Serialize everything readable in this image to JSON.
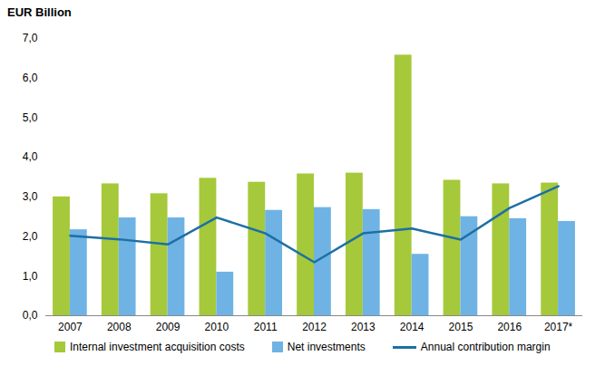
{
  "chart_data": {
    "type": "bar",
    "title": "EUR Billion",
    "categories": [
      "2007",
      "2008",
      "2009",
      "2010",
      "2011",
      "2012",
      "2013",
      "2014",
      "2015",
      "2016",
      "2017*"
    ],
    "series": [
      {
        "name": "Internal investment acquisition costs",
        "type": "bar",
        "color": "#a5c93a",
        "values": [
          3.0,
          3.33,
          3.08,
          3.47,
          3.37,
          3.58,
          3.6,
          6.58,
          3.42,
          3.33,
          3.35
        ]
      },
      {
        "name": "Net investments",
        "type": "bar",
        "color": "#6fb3e4",
        "values": [
          2.17,
          2.47,
          2.47,
          1.1,
          2.66,
          2.73,
          2.68,
          1.55,
          2.5,
          2.45,
          2.38
        ]
      },
      {
        "name": "Annual contribution margin",
        "type": "line",
        "color": "#1d6fa5",
        "values": [
          2.02,
          1.93,
          1.8,
          2.48,
          2.08,
          1.35,
          2.08,
          2.2,
          1.92,
          2.72,
          3.27
        ]
      }
    ],
    "ylim": [
      0,
      7
    ],
    "yticks": [
      {
        "value": 0,
        "label": "0,0"
      },
      {
        "value": 1,
        "label": "1,0"
      },
      {
        "value": 2,
        "label": "2,0"
      },
      {
        "value": 3,
        "label": "3,0"
      },
      {
        "value": 4,
        "label": "4,0"
      },
      {
        "value": 5,
        "label": "5,0"
      },
      {
        "value": 6,
        "label": "6,0"
      },
      {
        "value": 7,
        "label": "7,0"
      }
    ],
    "grid": false,
    "legend": "bottom"
  }
}
